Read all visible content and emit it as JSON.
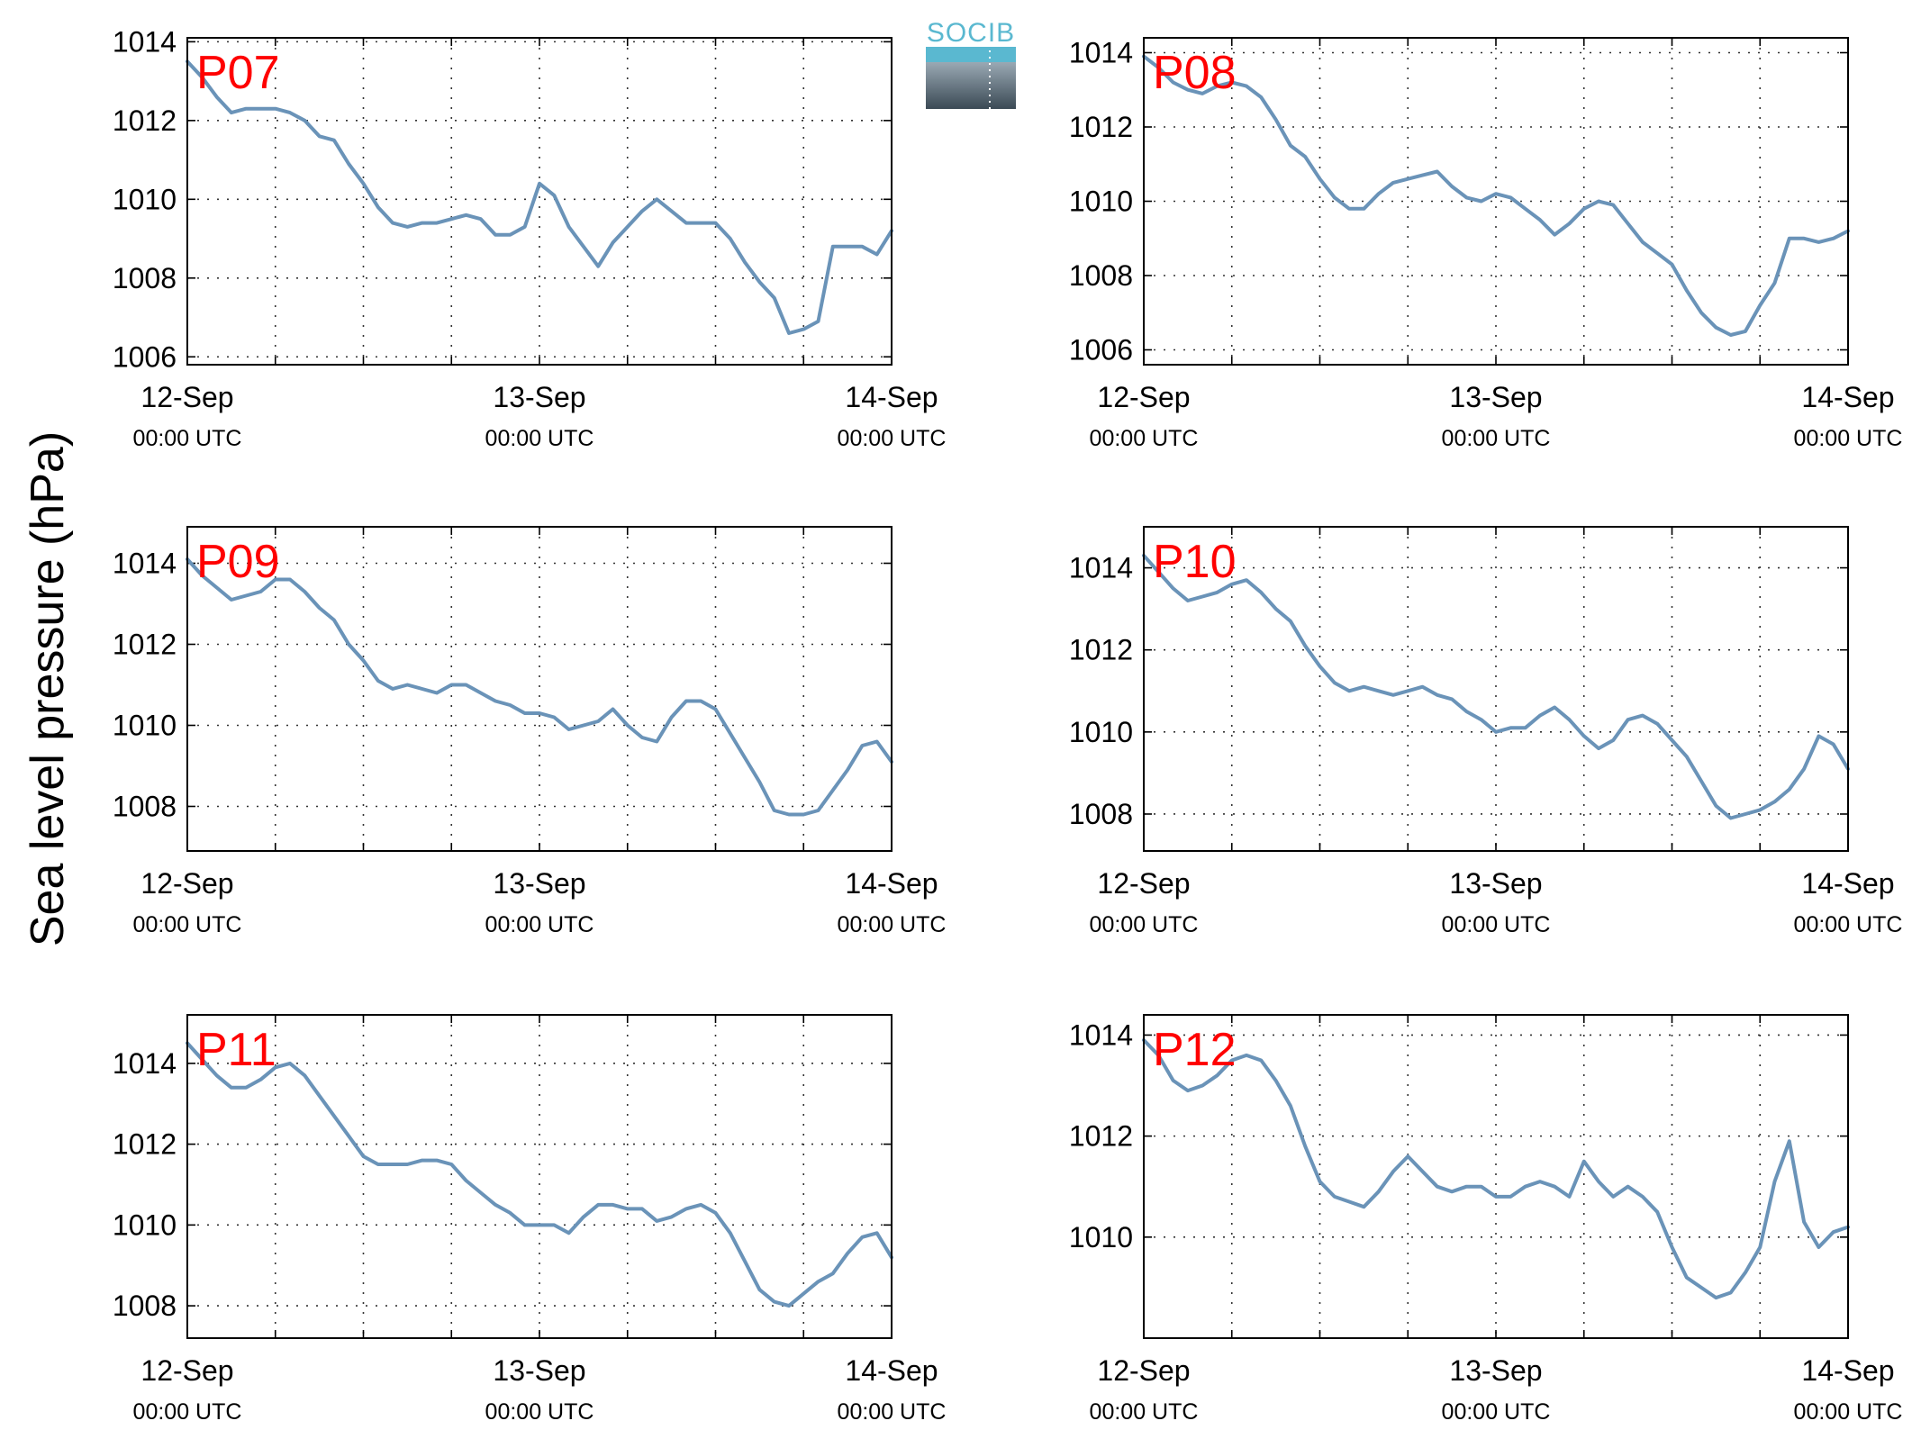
{
  "figure": {
    "ylabel": "Sea level pressure (hPa)",
    "logo_text": "SOCIB",
    "line_color": "#6a93b8",
    "label_color": "#ff0000",
    "x_ticks": [
      {
        "x": 0,
        "day": "12-Sep",
        "time": "00:00 UTC"
      },
      {
        "x": 24,
        "day": "13-Sep",
        "time": "00:00 UTC"
      },
      {
        "x": 48,
        "day": "14-Sep",
        "time": "00:00 UTC"
      }
    ]
  },
  "chart_data": [
    {
      "type": "line",
      "label": "P07",
      "xlim": [
        0,
        48
      ],
      "ylim": [
        1005.8,
        1014.1
      ],
      "yticks": [
        1006,
        1008,
        1010,
        1012,
        1014
      ],
      "x": [
        0,
        1,
        2,
        3,
        4,
        5,
        6,
        7,
        8,
        9,
        10,
        11,
        12,
        13,
        14,
        15,
        16,
        17,
        18,
        19,
        20,
        21,
        22,
        23,
        24,
        25,
        26,
        27,
        28,
        29,
        30,
        31,
        32,
        33,
        34,
        35,
        36,
        37,
        38,
        39,
        40,
        41,
        42,
        43,
        44,
        45,
        46,
        47,
        48
      ],
      "values": [
        1013.5,
        1013.1,
        1012.6,
        1012.2,
        1012.3,
        1012.3,
        1012.3,
        1012.2,
        1012.0,
        1011.6,
        1011.5,
        1010.9,
        1010.4,
        1009.8,
        1009.4,
        1009.3,
        1009.4,
        1009.4,
        1009.5,
        1009.6,
        1009.5,
        1009.1,
        1009.1,
        1009.3,
        1010.4,
        1010.1,
        1009.3,
        1008.8,
        1008.3,
        1008.9,
        1009.3,
        1009.7,
        1010.0,
        1009.7,
        1009.4,
        1009.4,
        1009.4,
        1009.0,
        1008.4,
        1007.9,
        1007.5,
        1006.6,
        1006.7,
        1006.9,
        1008.8,
        1008.8,
        1008.8,
        1008.6,
        1009.2
      ]
    },
    {
      "type": "line",
      "label": "P08",
      "xlim": [
        0,
        48
      ],
      "ylim": [
        1005.6,
        1014.4
      ],
      "yticks": [
        1006,
        1008,
        1010,
        1012,
        1014
      ],
      "x": [
        0,
        1,
        2,
        3,
        4,
        5,
        6,
        7,
        8,
        9,
        10,
        11,
        12,
        13,
        14,
        15,
        16,
        17,
        18,
        19,
        20,
        21,
        22,
        23,
        24,
        25,
        26,
        27,
        28,
        29,
        30,
        31,
        32,
        33,
        34,
        35,
        36,
        37,
        38,
        39,
        40,
        41,
        42,
        43,
        44,
        45,
        46,
        47,
        48
      ],
      "values": [
        1013.9,
        1013.6,
        1013.2,
        1013.0,
        1012.9,
        1013.1,
        1013.2,
        1013.1,
        1012.8,
        1012.2,
        1011.5,
        1011.2,
        1010.6,
        1010.1,
        1009.8,
        1009.8,
        1010.2,
        1010.5,
        1010.6,
        1010.7,
        1010.8,
        1010.4,
        1010.1,
        1010.0,
        1010.2,
        1010.1,
        1009.8,
        1009.5,
        1009.1,
        1009.4,
        1009.8,
        1010.0,
        1009.9,
        1009.4,
        1008.9,
        1008.6,
        1008.3,
        1007.6,
        1007.0,
        1006.6,
        1006.4,
        1006.5,
        1007.2,
        1007.8,
        1009.0,
        1009.0,
        1008.9,
        1009.0,
        1009.2
      ]
    },
    {
      "type": "line",
      "label": "P09",
      "xlim": [
        0,
        48
      ],
      "ylim": [
        1006.9,
        1014.9
      ],
      "yticks": [
        1008,
        1010,
        1012,
        1014
      ],
      "x": [
        0,
        1,
        2,
        3,
        4,
        5,
        6,
        7,
        8,
        9,
        10,
        11,
        12,
        13,
        14,
        15,
        16,
        17,
        18,
        19,
        20,
        21,
        22,
        23,
        24,
        25,
        26,
        27,
        28,
        29,
        30,
        31,
        32,
        33,
        34,
        35,
        36,
        37,
        38,
        39,
        40,
        41,
        42,
        43,
        44,
        45,
        46,
        47,
        48
      ],
      "values": [
        1014.1,
        1013.7,
        1013.4,
        1013.1,
        1013.2,
        1013.3,
        1013.6,
        1013.6,
        1013.3,
        1012.9,
        1012.6,
        1012.0,
        1011.6,
        1011.1,
        1010.9,
        1011.0,
        1010.9,
        1010.8,
        1011.0,
        1011.0,
        1010.8,
        1010.6,
        1010.5,
        1010.3,
        1010.3,
        1010.2,
        1009.9,
        1010.0,
        1010.1,
        1010.4,
        1010.0,
        1009.7,
        1009.6,
        1010.2,
        1010.6,
        1010.6,
        1010.4,
        1009.8,
        1009.2,
        1008.6,
        1007.9,
        1007.8,
        1007.8,
        1007.9,
        1008.4,
        1008.9,
        1009.5,
        1009.6,
        1009.1
      ]
    },
    {
      "type": "line",
      "label": "P10",
      "xlim": [
        0,
        48
      ],
      "ylim": [
        1007.1,
        1015.0
      ],
      "yticks": [
        1008,
        1010,
        1012,
        1014
      ],
      "x": [
        0,
        1,
        2,
        3,
        4,
        5,
        6,
        7,
        8,
        9,
        10,
        11,
        12,
        13,
        14,
        15,
        16,
        17,
        18,
        19,
        20,
        21,
        22,
        23,
        24,
        25,
        26,
        27,
        28,
        29,
        30,
        31,
        32,
        33,
        34,
        35,
        36,
        37,
        38,
        39,
        40,
        41,
        42,
        43,
        44,
        45,
        46,
        47,
        48
      ],
      "values": [
        1014.3,
        1013.9,
        1013.5,
        1013.2,
        1013.3,
        1013.4,
        1013.6,
        1013.7,
        1013.4,
        1013.0,
        1012.7,
        1012.1,
        1011.6,
        1011.2,
        1011.0,
        1011.1,
        1011.0,
        1010.9,
        1011.0,
        1011.1,
        1010.9,
        1010.8,
        1010.5,
        1010.3,
        1010.0,
        1010.1,
        1010.1,
        1010.4,
        1010.6,
        1010.3,
        1009.9,
        1009.6,
        1009.8,
        1010.3,
        1010.4,
        1010.2,
        1009.8,
        1009.4,
        1008.8,
        1008.2,
        1007.9,
        1008.0,
        1008.1,
        1008.3,
        1008.6,
        1009.1,
        1009.9,
        1009.7,
        1009.1
      ]
    },
    {
      "type": "line",
      "label": "P11",
      "xlim": [
        0,
        48
      ],
      "ylim": [
        1007.2,
        1015.2
      ],
      "yticks": [
        1008,
        1010,
        1012,
        1014
      ],
      "x": [
        0,
        1,
        2,
        3,
        4,
        5,
        6,
        7,
        8,
        9,
        10,
        11,
        12,
        13,
        14,
        15,
        16,
        17,
        18,
        19,
        20,
        21,
        22,
        23,
        24,
        25,
        26,
        27,
        28,
        29,
        30,
        31,
        32,
        33,
        34,
        35,
        36,
        37,
        38,
        39,
        40,
        41,
        42,
        43,
        44,
        45,
        46,
        47,
        48
      ],
      "values": [
        1014.5,
        1014.1,
        1013.7,
        1013.4,
        1013.4,
        1013.6,
        1013.9,
        1014.0,
        1013.7,
        1013.2,
        1012.7,
        1012.2,
        1011.7,
        1011.5,
        1011.5,
        1011.5,
        1011.6,
        1011.6,
        1011.5,
        1011.1,
        1010.8,
        1010.5,
        1010.3,
        1010.0,
        1010.0,
        1010.0,
        1009.8,
        1010.2,
        1010.5,
        1010.5,
        1010.4,
        1010.4,
        1010.1,
        1010.2,
        1010.4,
        1010.5,
        1010.3,
        1009.8,
        1009.1,
        1008.4,
        1008.1,
        1008.0,
        1008.3,
        1008.6,
        1008.8,
        1009.3,
        1009.7,
        1009.8,
        1009.2
      ]
    },
    {
      "type": "line",
      "label": "P12",
      "xlim": [
        0,
        48
      ],
      "ylim": [
        1008.0,
        1014.4
      ],
      "yticks": [
        1010,
        1012,
        1014
      ],
      "x": [
        0,
        1,
        2,
        3,
        4,
        5,
        6,
        7,
        8,
        9,
        10,
        11,
        12,
        13,
        14,
        15,
        16,
        17,
        18,
        19,
        20,
        21,
        22,
        23,
        24,
        25,
        26,
        27,
        28,
        29,
        30,
        31,
        32,
        33,
        34,
        35,
        36,
        37,
        38,
        39,
        40,
        41,
        42,
        43,
        44,
        45,
        46,
        47,
        48
      ],
      "values": [
        1013.9,
        1013.6,
        1013.1,
        1012.9,
        1013.0,
        1013.2,
        1013.5,
        1013.6,
        1013.5,
        1013.1,
        1012.6,
        1011.8,
        1011.1,
        1010.8,
        1010.7,
        1010.6,
        1010.9,
        1011.3,
        1011.6,
        1011.3,
        1011.0,
        1010.9,
        1011.0,
        1011.0,
        1010.8,
        1010.8,
        1011.0,
        1011.1,
        1011.0,
        1010.8,
        1011.5,
        1011.1,
        1010.8,
        1011.0,
        1010.8,
        1010.5,
        1009.8,
        1009.2,
        1009.0,
        1008.8,
        1008.9,
        1009.3,
        1009.8,
        1011.1,
        1011.9,
        1010.3,
        1009.8,
        1010.1,
        1010.2
      ]
    }
  ]
}
